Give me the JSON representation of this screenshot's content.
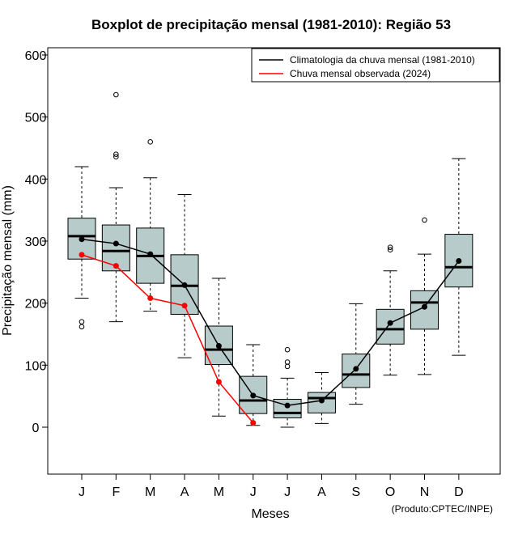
{
  "chart_data": {
    "type": "boxplot",
    "title": "Boxplot de precipitação mensal (1981-2010): Região 53",
    "xlabel": "Meses",
    "ylabel": "Precipitação mensal (mm)",
    "ylim": [
      -75,
      615
    ],
    "yticks": [
      0,
      100,
      200,
      300,
      400,
      500,
      600
    ],
    "categories": [
      "J",
      "F",
      "M",
      "A",
      "M",
      "J",
      "J",
      "A",
      "S",
      "O",
      "N",
      "D"
    ],
    "box_color": "#b7cbcb",
    "boxes": [
      {
        "whisker_low": 208,
        "q1": 271,
        "median": 308,
        "q3": 337,
        "whisker_high": 420,
        "outliers": [
          170,
          162
        ]
      },
      {
        "whisker_low": 170,
        "q1": 252,
        "median": 284,
        "q3": 326,
        "whisker_high": 386,
        "outliers": [
          536,
          440,
          436
        ]
      },
      {
        "whisker_low": 187,
        "q1": 232,
        "median": 276,
        "q3": 321,
        "whisker_high": 402,
        "outliers": [
          460
        ]
      },
      {
        "whisker_low": 112,
        "q1": 182,
        "median": 228,
        "q3": 278,
        "whisker_high": 375,
        "outliers": []
      },
      {
        "whisker_low": 18,
        "q1": 101,
        "median": 125,
        "q3": 163,
        "whisker_high": 240,
        "outliers": []
      },
      {
        "whisker_low": 3,
        "q1": 22,
        "median": 43,
        "q3": 82,
        "whisker_high": 133,
        "outliers": []
      },
      {
        "whisker_low": 0,
        "q1": 15,
        "median": 23,
        "q3": 45,
        "whisker_high": 79,
        "outliers": [
          125,
          105,
          98
        ]
      },
      {
        "whisker_low": 6,
        "q1": 23,
        "median": 47,
        "q3": 56,
        "whisker_high": 88,
        "outliers": []
      },
      {
        "whisker_low": 37,
        "q1": 64,
        "median": 85,
        "q3": 118,
        "whisker_high": 199,
        "outliers": []
      },
      {
        "whisker_low": 84,
        "q1": 134,
        "median": 158,
        "q3": 190,
        "whisker_high": 252,
        "outliers": [
          290,
          286
        ]
      },
      {
        "whisker_low": 85,
        "q1": 158,
        "median": 201,
        "q3": 220,
        "whisker_high": 279,
        "outliers": [
          334
        ]
      },
      {
        "whisker_low": 116,
        "q1": 226,
        "median": 258,
        "q3": 311,
        "whisker_high": 433,
        "outliers": []
      }
    ],
    "series": [
      {
        "name": "Climatologia da chuva mensal (1981-2010)",
        "color": "#000000",
        "values": [
          303,
          296,
          279,
          229,
          131,
          51,
          35,
          43,
          94,
          168,
          194,
          268
        ]
      },
      {
        "name": "Chuva mensal observada (2024)",
        "color": "#ff0000",
        "values": [
          278,
          260,
          208,
          196,
          73,
          7
        ]
      }
    ],
    "legend_position": "top-right",
    "credit": "(Produto:CPTEC/INPE)"
  }
}
